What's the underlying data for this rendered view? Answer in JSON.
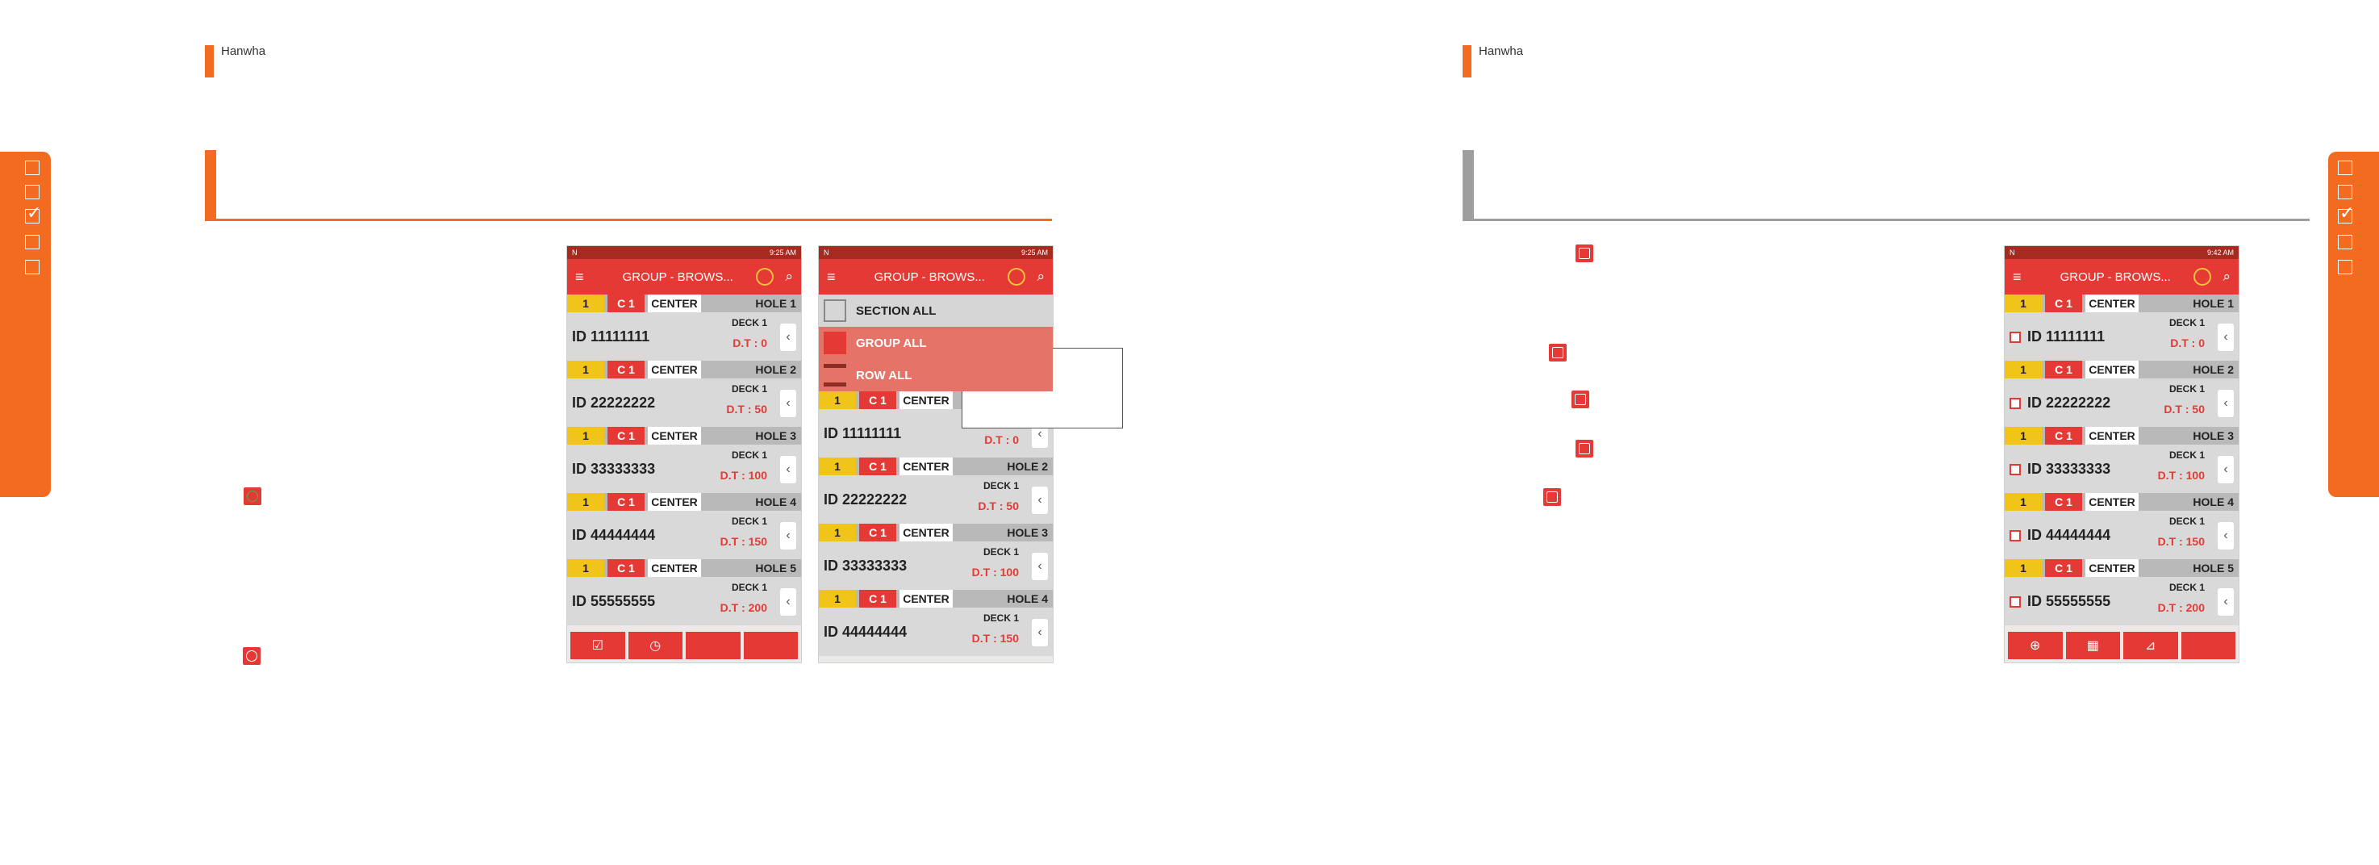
{
  "brand": "Hanwha",
  "colors": {
    "accent": "#f26b21",
    "app_red": "#e53935",
    "yellow": "#f0c419"
  },
  "phone_common": {
    "title": "GROUP - BROWS...",
    "rows": [
      {
        "num": "1",
        "code": "C 1",
        "pos": "CENTER",
        "hole": "HOLE 1",
        "id": "ID 11111111",
        "deck": "DECK 1",
        "dt": "D.T : 0"
      },
      {
        "num": "1",
        "code": "C 1",
        "pos": "CENTER",
        "hole": "HOLE 2",
        "id": "ID 22222222",
        "deck": "DECK 1",
        "dt": "D.T : 50"
      },
      {
        "num": "1",
        "code": "C 1",
        "pos": "CENTER",
        "hole": "HOLE 3",
        "id": "ID 33333333",
        "deck": "DECK 1",
        "dt": "D.T : 100"
      },
      {
        "num": "1",
        "code": "C 1",
        "pos": "CENTER",
        "hole": "HOLE 4",
        "id": "ID 44444444",
        "deck": "DECK 1",
        "dt": "D.T : 150"
      },
      {
        "num": "1",
        "code": "C 1",
        "pos": "CENTER",
        "hole": "HOLE 5",
        "id": "ID 55555555",
        "deck": "DECK 1",
        "dt": "D.T : 200"
      }
    ]
  },
  "phone1": {
    "time": "9:25 AM",
    "buttons": [
      "☑",
      "◷",
      "",
      ""
    ]
  },
  "phone2": {
    "time": "9:25 AM",
    "menu": {
      "section_all": "SECTION ALL",
      "group_all": "GROUP ALL",
      "row_all": "ROW ALL"
    }
  },
  "phone3": {
    "time": "9:42 AM",
    "buttons": [
      "⊕",
      "▦",
      "⊿",
      ""
    ]
  }
}
